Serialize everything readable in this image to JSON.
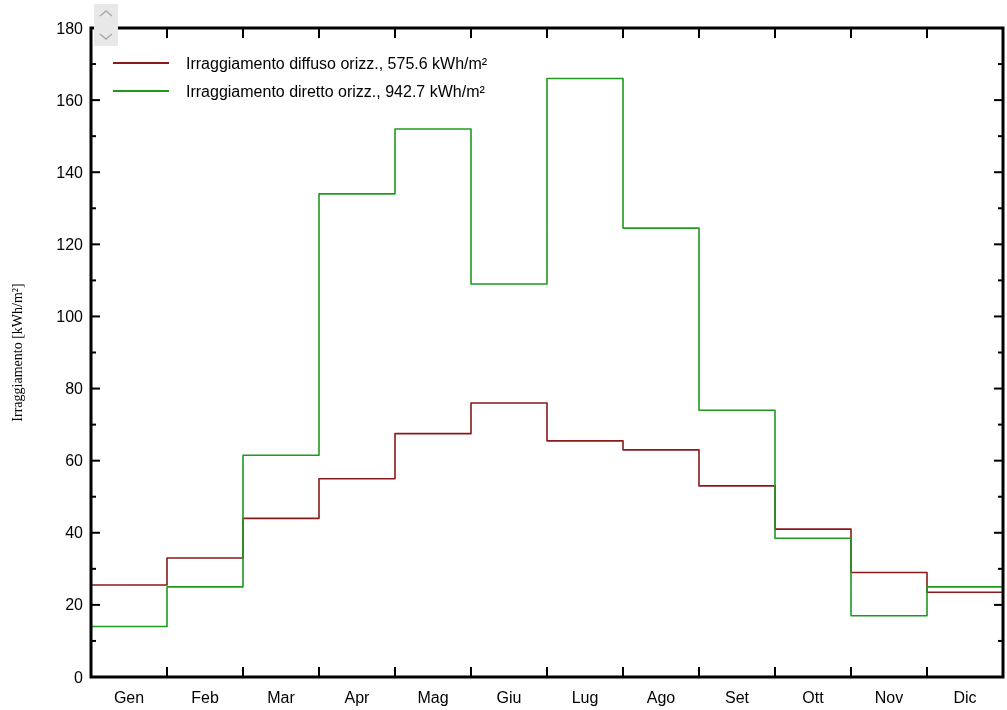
{
  "chart_data": {
    "type": "step",
    "ylabel": "Irraggiamento  [kWh/m²]",
    "categories": [
      "Gen",
      "Feb",
      "Mar",
      "Apr",
      "Mag",
      "Giu",
      "Lug",
      "Ago",
      "Set",
      "Ott",
      "Nov",
      "Dic"
    ],
    "series": [
      {
        "name": "Irraggiamento diffuso orizz.,  575.6 kWh/m²",
        "color": "#8b1a1a",
        "values": [
          25.5,
          33,
          44,
          55,
          67.5,
          76,
          65.5,
          63,
          53,
          41,
          29,
          23.5
        ]
      },
      {
        "name": "Irraggiamento diretto orizz.,  942.7 kWh/m²",
        "color": "#1f9a1f",
        "values": [
          14,
          25,
          61.5,
          134,
          152,
          109,
          166,
          124.5,
          74,
          38.5,
          17,
          25
        ]
      }
    ],
    "ylim": [
      0,
      180
    ],
    "yticks": [
      0,
      {
        "value": 10,
        "label": null
      },
      20,
      {
        "value": 30,
        "label": null
      },
      40,
      {
        "value": 50,
        "label": null
      },
      60,
      {
        "value": 70,
        "label": null
      },
      80,
      {
        "value": 90,
        "label": null
      },
      100,
      {
        "value": 110,
        "label": null
      },
      120,
      {
        "value": 130,
        "label": null
      },
      140,
      {
        "value": 150,
        "label": null
      },
      160,
      {
        "value": 170,
        "label": null
      },
      180
    ],
    "legend": "top left",
    "grid": false
  }
}
